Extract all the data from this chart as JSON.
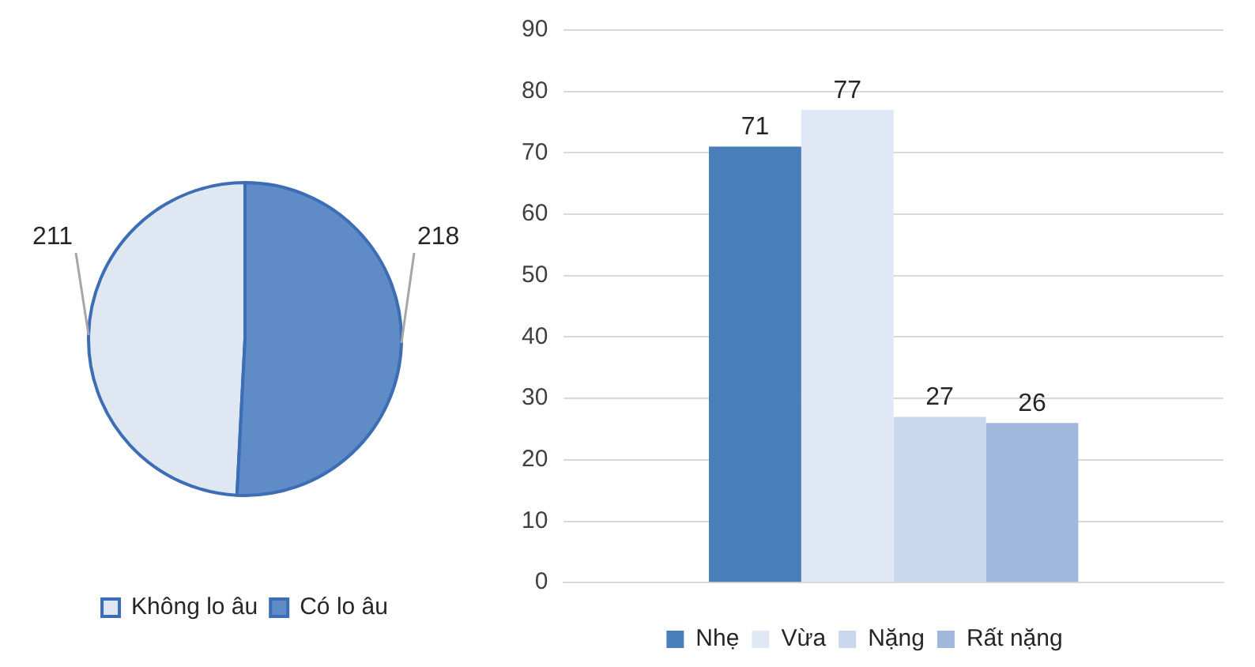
{
  "chart_data": [
    {
      "type": "pie",
      "categories": [
        "Không lo âu",
        "Có lo âu"
      ],
      "values": [
        211,
        218
      ],
      "colors": [
        "#dfe7f3",
        "#5f8bc6"
      ],
      "data_labels": true,
      "legend": "bottom"
    },
    {
      "type": "bar",
      "categories": [
        null
      ],
      "series": [
        {
          "name": "Nhẹ",
          "color": "#4a7ebb",
          "values": [
            71
          ]
        },
        {
          "name": "Vừa",
          "color": "#dfe8f4",
          "values": [
            77
          ]
        },
        {
          "name": "Nặng",
          "color": "#c9d8ec",
          "values": [
            27
          ]
        },
        {
          "name": "Rất nặng",
          "color": "#9fb8dc",
          "values": [
            26
          ]
        }
      ],
      "ylim": [
        0,
        90
      ],
      "yticks": [
        0,
        10,
        20,
        30,
        40,
        50,
        60,
        70,
        80,
        90
      ],
      "grid": "y",
      "legend": "bottom",
      "data_labels": true
    }
  ]
}
